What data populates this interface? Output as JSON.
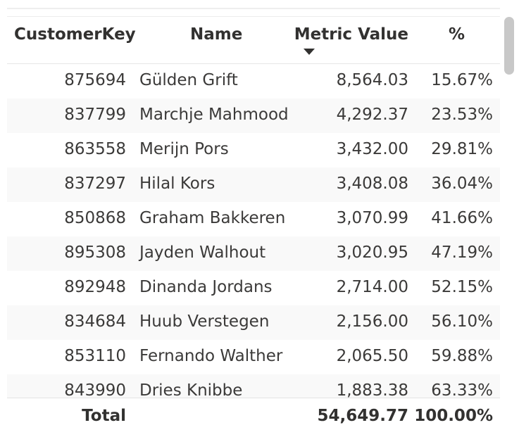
{
  "table": {
    "headers": {
      "customer_key": "CustomerKey",
      "name": "Name",
      "metric_value": "Metric Value",
      "percent": "%"
    },
    "sort_column": "metric_value",
    "sort_direction": "descending",
    "rows": [
      {
        "key": "875694",
        "name": "Gülden Grift",
        "value": "8,564.03",
        "pct": "15.67%"
      },
      {
        "key": "837799",
        "name": "Marchje Mahmood",
        "value": "4,292.37",
        "pct": "23.53%"
      },
      {
        "key": "863558",
        "name": "Merijn Pors",
        "value": "3,432.00",
        "pct": "29.81%"
      },
      {
        "key": "837297",
        "name": "Hilal Kors",
        "value": "3,408.08",
        "pct": "36.04%"
      },
      {
        "key": "850868",
        "name": "Graham Bakkeren",
        "value": "3,070.99",
        "pct": "41.66%"
      },
      {
        "key": "895308",
        "name": "Jayden Walhout",
        "value": "3,020.95",
        "pct": "47.19%"
      },
      {
        "key": "892948",
        "name": "Dinanda Jordans",
        "value": "2,714.00",
        "pct": "52.15%"
      },
      {
        "key": "834684",
        "name": "Huub Verstegen",
        "value": "2,156.00",
        "pct": "56.10%"
      },
      {
        "key": "853110",
        "name": "Fernando Walther",
        "value": "2,065.50",
        "pct": "59.88%"
      },
      {
        "key": "843990",
        "name": "Dries Knibbe",
        "value": "1,883.38",
        "pct": "63.33%"
      }
    ],
    "total": {
      "label": "Total",
      "value": "54,649.77",
      "pct": "100.00%"
    }
  },
  "colors": {
    "header_text": "#323130",
    "cell_text": "#3b3a39",
    "stripe": "#f9f9f9",
    "scroll_thumb": "#c8c8c8"
  }
}
